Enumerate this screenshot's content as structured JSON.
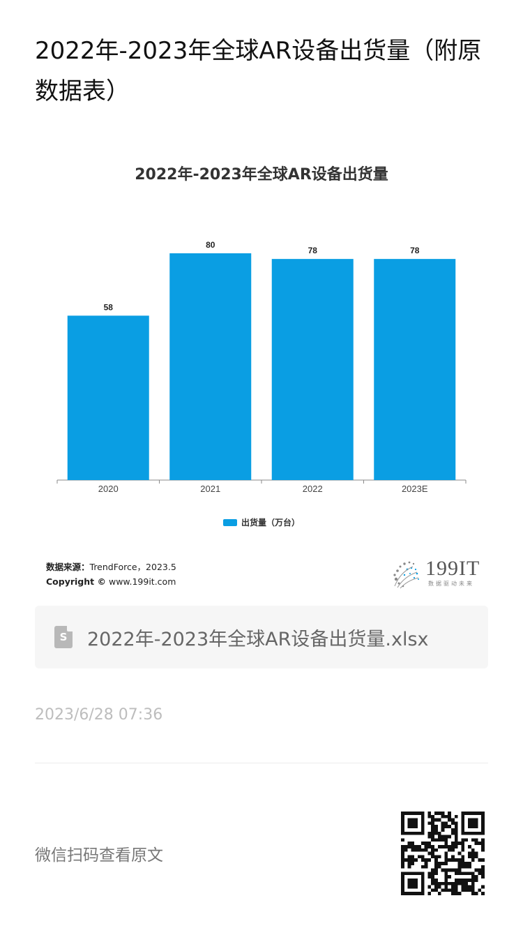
{
  "article": {
    "title": "2022年-2023年全球AR设备出货量（附原数据表）"
  },
  "chart_data": {
    "type": "bar",
    "title": "2022年-2023年全球AR设备出货量",
    "categories": [
      "2020",
      "2021",
      "2022",
      "2023E"
    ],
    "series": [
      {
        "name": "出货量（万台）",
        "values": [
          58,
          80,
          78,
          78
        ]
      }
    ],
    "ylim": [
      0,
      80
    ],
    "grid": false,
    "legend": "bottom",
    "bar_color": "#0a9ee3",
    "data_labels": [
      "58",
      "80",
      "78",
      "78"
    ]
  },
  "source": {
    "label": "数据来源：",
    "text": "TrendForce，2023.5",
    "copyright_label": "Copyright ©",
    "copyright_site": "www.199it.com"
  },
  "logo": {
    "text": "199IT",
    "sub": "数据驱动未来"
  },
  "attachment": {
    "icon": "spreadsheet-icon",
    "icon_letter": "S",
    "filename": "2022年-2023年全球AR设备出货量.xlsx"
  },
  "timestamp": "2023/6/28 07:36",
  "qr": {
    "hint": "微信扫码查看原文"
  }
}
